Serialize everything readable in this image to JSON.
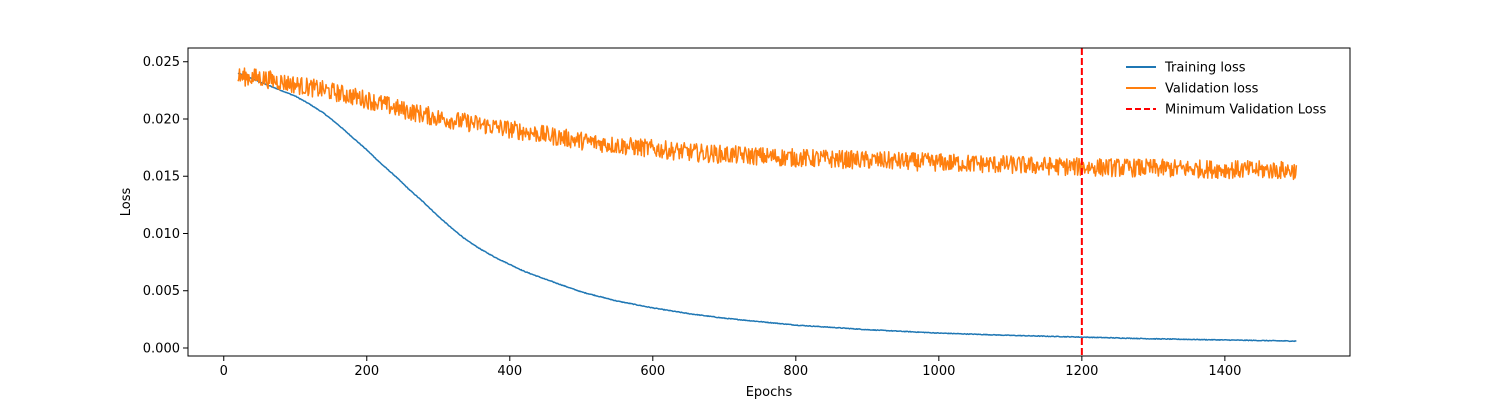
{
  "chart_data": {
    "type": "line",
    "title": "",
    "xlabel": "Epochs",
    "ylabel": "Loss",
    "xlim": [
      -50,
      1575
    ],
    "ylim": [
      -0.0007,
      0.0262
    ],
    "xticks": [
      0,
      200,
      400,
      600,
      800,
      1000,
      1200,
      1400
    ],
    "xtick_labels": [
      "0",
      "200",
      "400",
      "600",
      "800",
      "1000",
      "1200",
      "1400"
    ],
    "yticks": [
      0.0,
      0.005,
      0.01,
      0.015,
      0.02,
      0.025
    ],
    "ytick_labels": [
      "0.000",
      "0.005",
      "0.010",
      "0.015",
      "0.020",
      "0.025"
    ],
    "grid": false,
    "legend_position": "top-right",
    "series": [
      {
        "name": "Training loss",
        "color": "#1f77b4",
        "style": "solid",
        "x": [
          20,
          40,
          60,
          80,
          100,
          120,
          140,
          160,
          180,
          200,
          220,
          240,
          260,
          280,
          300,
          320,
          340,
          360,
          380,
          400,
          420,
          450,
          500,
          550,
          600,
          650,
          700,
          750,
          800,
          900,
          1000,
          1100,
          1200,
          1300,
          1400,
          1500
        ],
        "y": [
          0.024,
          0.0235,
          0.023,
          0.0225,
          0.022,
          0.0213,
          0.0205,
          0.0195,
          0.0184,
          0.0173,
          0.0161,
          0.015,
          0.0138,
          0.0127,
          0.0115,
          0.0104,
          0.0094,
          0.0086,
          0.0079,
          0.0073,
          0.0067,
          0.006,
          0.0049,
          0.0041,
          0.0035,
          0.003,
          0.0026,
          0.0023,
          0.002,
          0.0016,
          0.0013,
          0.0011,
          0.00095,
          0.0008,
          0.0007,
          0.0006
        ]
      },
      {
        "name": "Validation loss",
        "color": "#ff7f0e",
        "style": "solid",
        "noise_amplitude": 0.0008,
        "x": [
          20,
          50,
          100,
          150,
          200,
          250,
          300,
          350,
          400,
          450,
          500,
          550,
          600,
          650,
          700,
          800,
          900,
          1000,
          1100,
          1200,
          1300,
          1400,
          1500
        ],
        "y": [
          0.0237,
          0.0236,
          0.023,
          0.0224,
          0.0217,
          0.0208,
          0.0201,
          0.0196,
          0.0191,
          0.0186,
          0.0181,
          0.0177,
          0.0174,
          0.0171,
          0.0169,
          0.0166,
          0.0164,
          0.0162,
          0.016,
          0.0158,
          0.0157,
          0.0156,
          0.0155
        ]
      }
    ],
    "vline": {
      "name": "Minimum Validation Loss",
      "x": 1200,
      "color": "#ff0000",
      "style": "dashed"
    }
  }
}
